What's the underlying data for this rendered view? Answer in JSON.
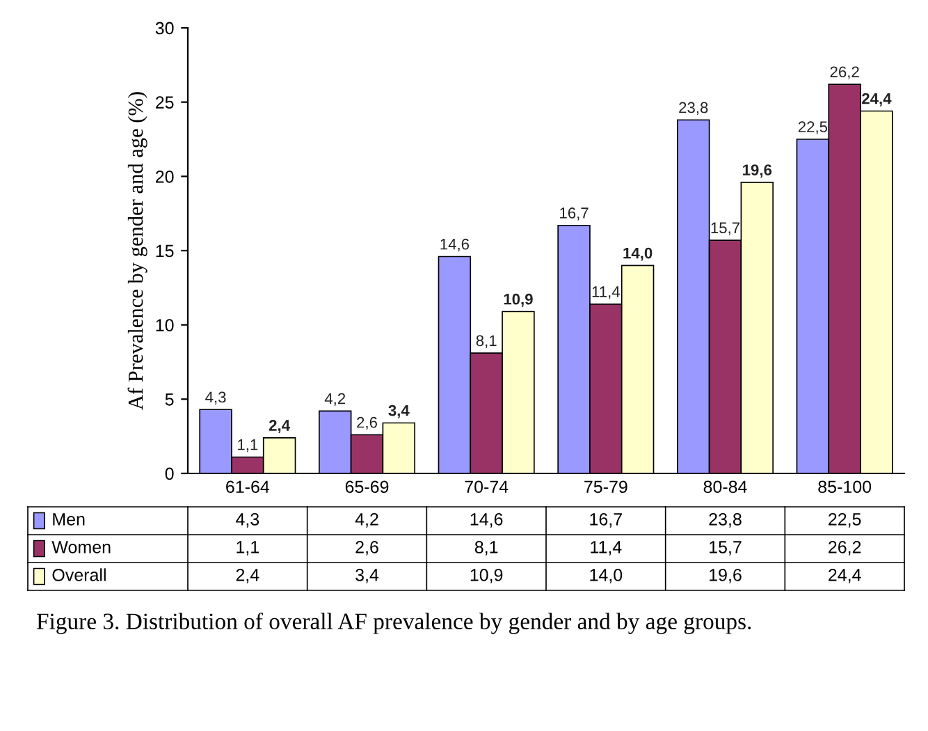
{
  "chart_data": {
    "type": "bar",
    "ylabel": "Af Prevalence by gender and age (%)",
    "categories": [
      "61-64",
      "65-69",
      "70-74",
      "75-79",
      "80-84",
      "85-100"
    ],
    "series": [
      {
        "name": "Men",
        "color": "#9999ff",
        "values": [
          4.3,
          4.2,
          14.6,
          16.7,
          23.8,
          22.5
        ],
        "value_labels": [
          "4,3",
          "4,2",
          "14,6",
          "16,7",
          "23,8",
          "22,5"
        ]
      },
      {
        "name": "Women",
        "color": "#993366",
        "values": [
          1.1,
          2.6,
          8.1,
          11.4,
          15.7,
          26.2
        ],
        "value_labels": [
          "1,1",
          "2,6",
          "8,1",
          "11,4",
          "15,7",
          "26,2"
        ]
      },
      {
        "name": "Overall",
        "color": "#ffffcc",
        "values": [
          2.4,
          3.4,
          10.9,
          14.0,
          19.6,
          24.4
        ],
        "value_labels": [
          "2,4",
          "3,4",
          "10,9",
          "14,0",
          "19,6",
          "24,4"
        ]
      }
    ],
    "ylim": [
      0,
      30
    ],
    "yticks": [
      0,
      5,
      10,
      15,
      20,
      25,
      30
    ],
    "grid": false,
    "legend": "bottom",
    "annotations": [
      "Figure 3. Distribution of overall AF prevalence by gender and by age groups."
    ]
  }
}
